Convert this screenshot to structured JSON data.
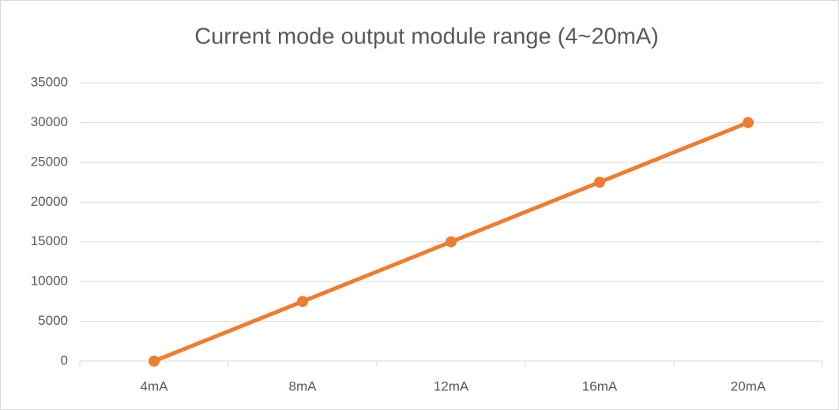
{
  "chart_data": {
    "type": "line",
    "title": "Current mode output module range (4~20mA)",
    "categories": [
      "4mA",
      "8mA",
      "12mA",
      "16mA",
      "20mA"
    ],
    "values": [
      0,
      7500,
      15000,
      22500,
      30000
    ],
    "color": "#ed7d31",
    "ylim": [
      0,
      35000
    ],
    "yticks": [
      0,
      5000,
      10000,
      15000,
      20000,
      25000,
      30000,
      35000
    ],
    "grid": true
  }
}
